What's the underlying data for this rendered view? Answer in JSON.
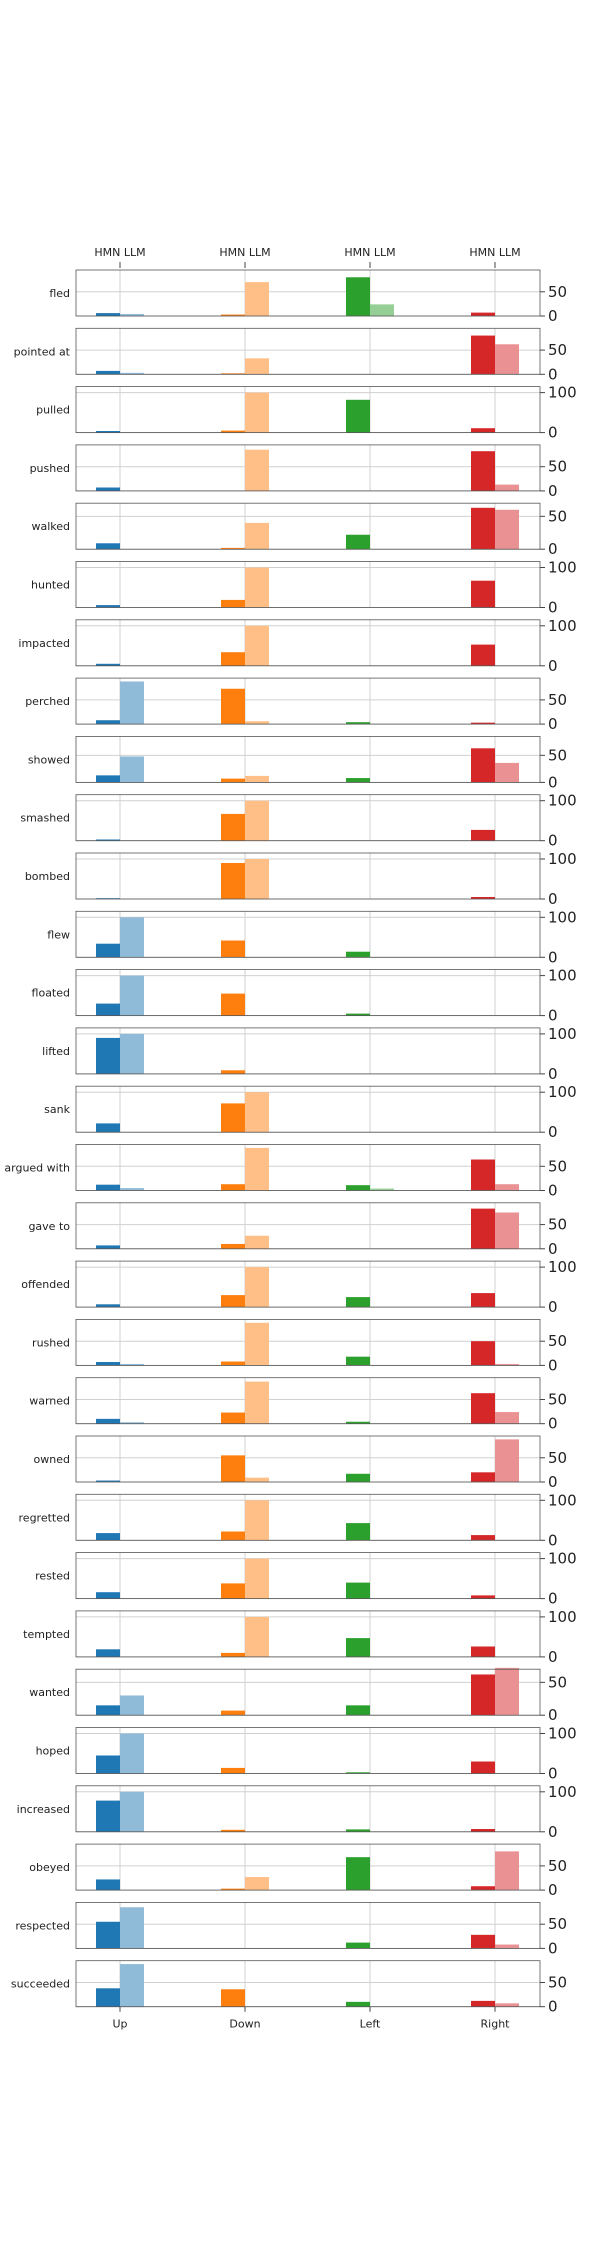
{
  "chart_data": {
    "type": "bar",
    "top_tick_label": "HMN LLM",
    "categories": [
      "Up",
      "Down",
      "Left",
      "Right"
    ],
    "series_kinds": [
      "HMN",
      "LLM"
    ],
    "colors": {
      "Up": [
        "#1f77b4",
        "#8fbbd9"
      ],
      "Down": [
        "#ff7f0e",
        "#ffbf86"
      ],
      "Left": [
        "#2ca02c",
        "#95cf95"
      ],
      "Right": [
        "#d62728",
        "#ea9293"
      ]
    },
    "grid": true,
    "panels": [
      {
        "verb": "fled",
        "ylim": [
          0,
          95
        ],
        "yticks": [
          0,
          50
        ],
        "values": [
          [
            6,
            4
          ],
          [
            3,
            70
          ],
          [
            80,
            24
          ],
          [
            7,
            0
          ]
        ]
      },
      {
        "verb": "pointed at",
        "ylim": [
          0,
          95
        ],
        "yticks": [
          0,
          50
        ],
        "values": [
          [
            7,
            3
          ],
          [
            2,
            33
          ],
          [
            0,
            0
          ],
          [
            80,
            62
          ]
        ]
      },
      {
        "verb": "pulled",
        "ylim": [
          0,
          115
        ],
        "yticks": [
          0,
          100
        ],
        "values": [
          [
            4,
            0
          ],
          [
            5,
            100
          ],
          [
            82,
            0
          ],
          [
            11,
            0
          ]
        ]
      },
      {
        "verb": "pushed",
        "ylim": [
          0,
          95
        ],
        "yticks": [
          0,
          50
        ],
        "values": [
          [
            7,
            0
          ],
          [
            0,
            85
          ],
          [
            0,
            0
          ],
          [
            82,
            13
          ]
        ]
      },
      {
        "verb": "walked",
        "ylim": [
          0,
          70
        ],
        "yticks": [
          0,
          50
        ],
        "values": [
          [
            9,
            0
          ],
          [
            2,
            40
          ],
          [
            22,
            0
          ],
          [
            63,
            60
          ]
        ]
      },
      {
        "verb": "hunted",
        "ylim": [
          0,
          115
        ],
        "yticks": [
          0,
          100
        ],
        "values": [
          [
            6,
            0
          ],
          [
            19,
            100
          ],
          [
            0,
            0
          ],
          [
            67,
            0
          ]
        ]
      },
      {
        "verb": "impacted",
        "ylim": [
          0,
          115
        ],
        "yticks": [
          0,
          100
        ],
        "values": [
          [
            5,
            0
          ],
          [
            34,
            100
          ],
          [
            0,
            0
          ],
          [
            53,
            0
          ]
        ]
      },
      {
        "verb": "perched",
        "ylim": [
          0,
          95
        ],
        "yticks": [
          0,
          50
        ],
        "values": [
          [
            8,
            88
          ],
          [
            73,
            6
          ],
          [
            4,
            0
          ],
          [
            3,
            0
          ]
        ]
      },
      {
        "verb": "showed",
        "ylim": [
          0,
          85
        ],
        "yticks": [
          0,
          50
        ],
        "values": [
          [
            13,
            48
          ],
          [
            7,
            12
          ],
          [
            8,
            0
          ],
          [
            63,
            36
          ]
        ]
      },
      {
        "verb": "smashed",
        "ylim": [
          0,
          115
        ],
        "yticks": [
          0,
          100
        ],
        "values": [
          [
            3,
            0
          ],
          [
            67,
            100
          ],
          [
            0,
            0
          ],
          [
            27,
            0
          ]
        ]
      },
      {
        "verb": "bombed",
        "ylim": [
          0,
          115
        ],
        "yticks": [
          0,
          100
        ],
        "values": [
          [
            2,
            0
          ],
          [
            90,
            100
          ],
          [
            0,
            0
          ],
          [
            5,
            0
          ]
        ]
      },
      {
        "verb": "flew",
        "ylim": [
          0,
          115
        ],
        "yticks": [
          0,
          100
        ],
        "values": [
          [
            34,
            100
          ],
          [
            42,
            0
          ],
          [
            14,
            0
          ],
          [
            0,
            0
          ]
        ]
      },
      {
        "verb": "floated",
        "ylim": [
          0,
          115
        ],
        "yticks": [
          0,
          100
        ],
        "values": [
          [
            30,
            100
          ],
          [
            55,
            0
          ],
          [
            5,
            0
          ],
          [
            0,
            0
          ]
        ]
      },
      {
        "verb": "lifted",
        "ylim": [
          0,
          115
        ],
        "yticks": [
          0,
          100
        ],
        "values": [
          [
            90,
            100
          ],
          [
            9,
            0
          ],
          [
            0,
            0
          ],
          [
            0,
            0
          ]
        ]
      },
      {
        "verb": "sank",
        "ylim": [
          0,
          115
        ],
        "yticks": [
          0,
          100
        ],
        "values": [
          [
            22,
            0
          ],
          [
            72,
            100
          ],
          [
            0,
            0
          ],
          [
            0,
            0
          ]
        ]
      },
      {
        "verb": "argued with",
        "ylim": [
          0,
          95
        ],
        "yticks": [
          0,
          50
        ],
        "values": [
          [
            12,
            5
          ],
          [
            13,
            88
          ],
          [
            11,
            4
          ],
          [
            64,
            13
          ]
        ]
      },
      {
        "verb": "gave to",
        "ylim": [
          0,
          95
        ],
        "yticks": [
          0,
          50
        ],
        "values": [
          [
            7,
            0
          ],
          [
            10,
            27
          ],
          [
            0,
            0
          ],
          [
            83,
            75
          ]
        ]
      },
      {
        "verb": "offended",
        "ylim": [
          0,
          115
        ],
        "yticks": [
          0,
          100
        ],
        "values": [
          [
            7,
            0
          ],
          [
            30,
            100
          ],
          [
            25,
            0
          ],
          [
            35,
            0
          ]
        ]
      },
      {
        "verb": "rushed",
        "ylim": [
          0,
          95
        ],
        "yticks": [
          0,
          50
        ],
        "values": [
          [
            7,
            3
          ],
          [
            8,
            88
          ],
          [
            18,
            0
          ],
          [
            50,
            3
          ]
        ]
      },
      {
        "verb": "warned",
        "ylim": [
          0,
          95
        ],
        "yticks": [
          0,
          50
        ],
        "values": [
          [
            10,
            3
          ],
          [
            23,
            87
          ],
          [
            4,
            0
          ],
          [
            63,
            24
          ]
        ]
      },
      {
        "verb": "owned",
        "ylim": [
          0,
          95
        ],
        "yticks": [
          0,
          50
        ],
        "values": [
          [
            3,
            0
          ],
          [
            55,
            9
          ],
          [
            17,
            0
          ],
          [
            20,
            88
          ]
        ]
      },
      {
        "verb": "regretted",
        "ylim": [
          0,
          115
        ],
        "yticks": [
          0,
          100
        ],
        "values": [
          [
            18,
            0
          ],
          [
            22,
            100
          ],
          [
            43,
            0
          ],
          [
            13,
            0
          ]
        ]
      },
      {
        "verb": "rested",
        "ylim": [
          0,
          115
        ],
        "yticks": [
          0,
          100
        ],
        "values": [
          [
            16,
            0
          ],
          [
            38,
            100
          ],
          [
            40,
            0
          ],
          [
            8,
            0
          ]
        ]
      },
      {
        "verb": "tempted",
        "ylim": [
          0,
          115
        ],
        "yticks": [
          0,
          100
        ],
        "values": [
          [
            19,
            0
          ],
          [
            10,
            100
          ],
          [
            47,
            0
          ],
          [
            26,
            0
          ]
        ]
      },
      {
        "verb": "wanted",
        "ylim": [
          0,
          70
        ],
        "yticks": [
          0,
          50
        ],
        "values": [
          [
            15,
            30
          ],
          [
            7,
            0
          ],
          [
            15,
            0
          ],
          [
            62,
            72
          ]
        ]
      },
      {
        "verb": "hoped",
        "ylim": [
          0,
          115
        ],
        "yticks": [
          0,
          100
        ],
        "values": [
          [
            45,
            100
          ],
          [
            14,
            0
          ],
          [
            3,
            0
          ],
          [
            30,
            0
          ]
        ]
      },
      {
        "verb": "increased",
        "ylim": [
          0,
          115
        ],
        "yticks": [
          0,
          100
        ],
        "values": [
          [
            78,
            100
          ],
          [
            5,
            0
          ],
          [
            6,
            0
          ],
          [
            7,
            0
          ]
        ]
      },
      {
        "verb": "obeyed",
        "ylim": [
          0,
          95
        ],
        "yticks": [
          0,
          50
        ],
        "values": [
          [
            22,
            0
          ],
          [
            3,
            27
          ],
          [
            68,
            0
          ],
          [
            8,
            80
          ]
        ]
      },
      {
        "verb": "respected",
        "ylim": [
          0,
          95
        ],
        "yticks": [
          0,
          50
        ],
        "values": [
          [
            55,
            85
          ],
          [
            0,
            0
          ],
          [
            12,
            0
          ],
          [
            28,
            8
          ]
        ]
      },
      {
        "verb": "succeeded",
        "ylim": [
          0,
          95
        ],
        "yticks": [
          0,
          50
        ],
        "values": [
          [
            38,
            88
          ],
          [
            36,
            0
          ],
          [
            10,
            0
          ],
          [
            12,
            7
          ]
        ]
      }
    ]
  }
}
